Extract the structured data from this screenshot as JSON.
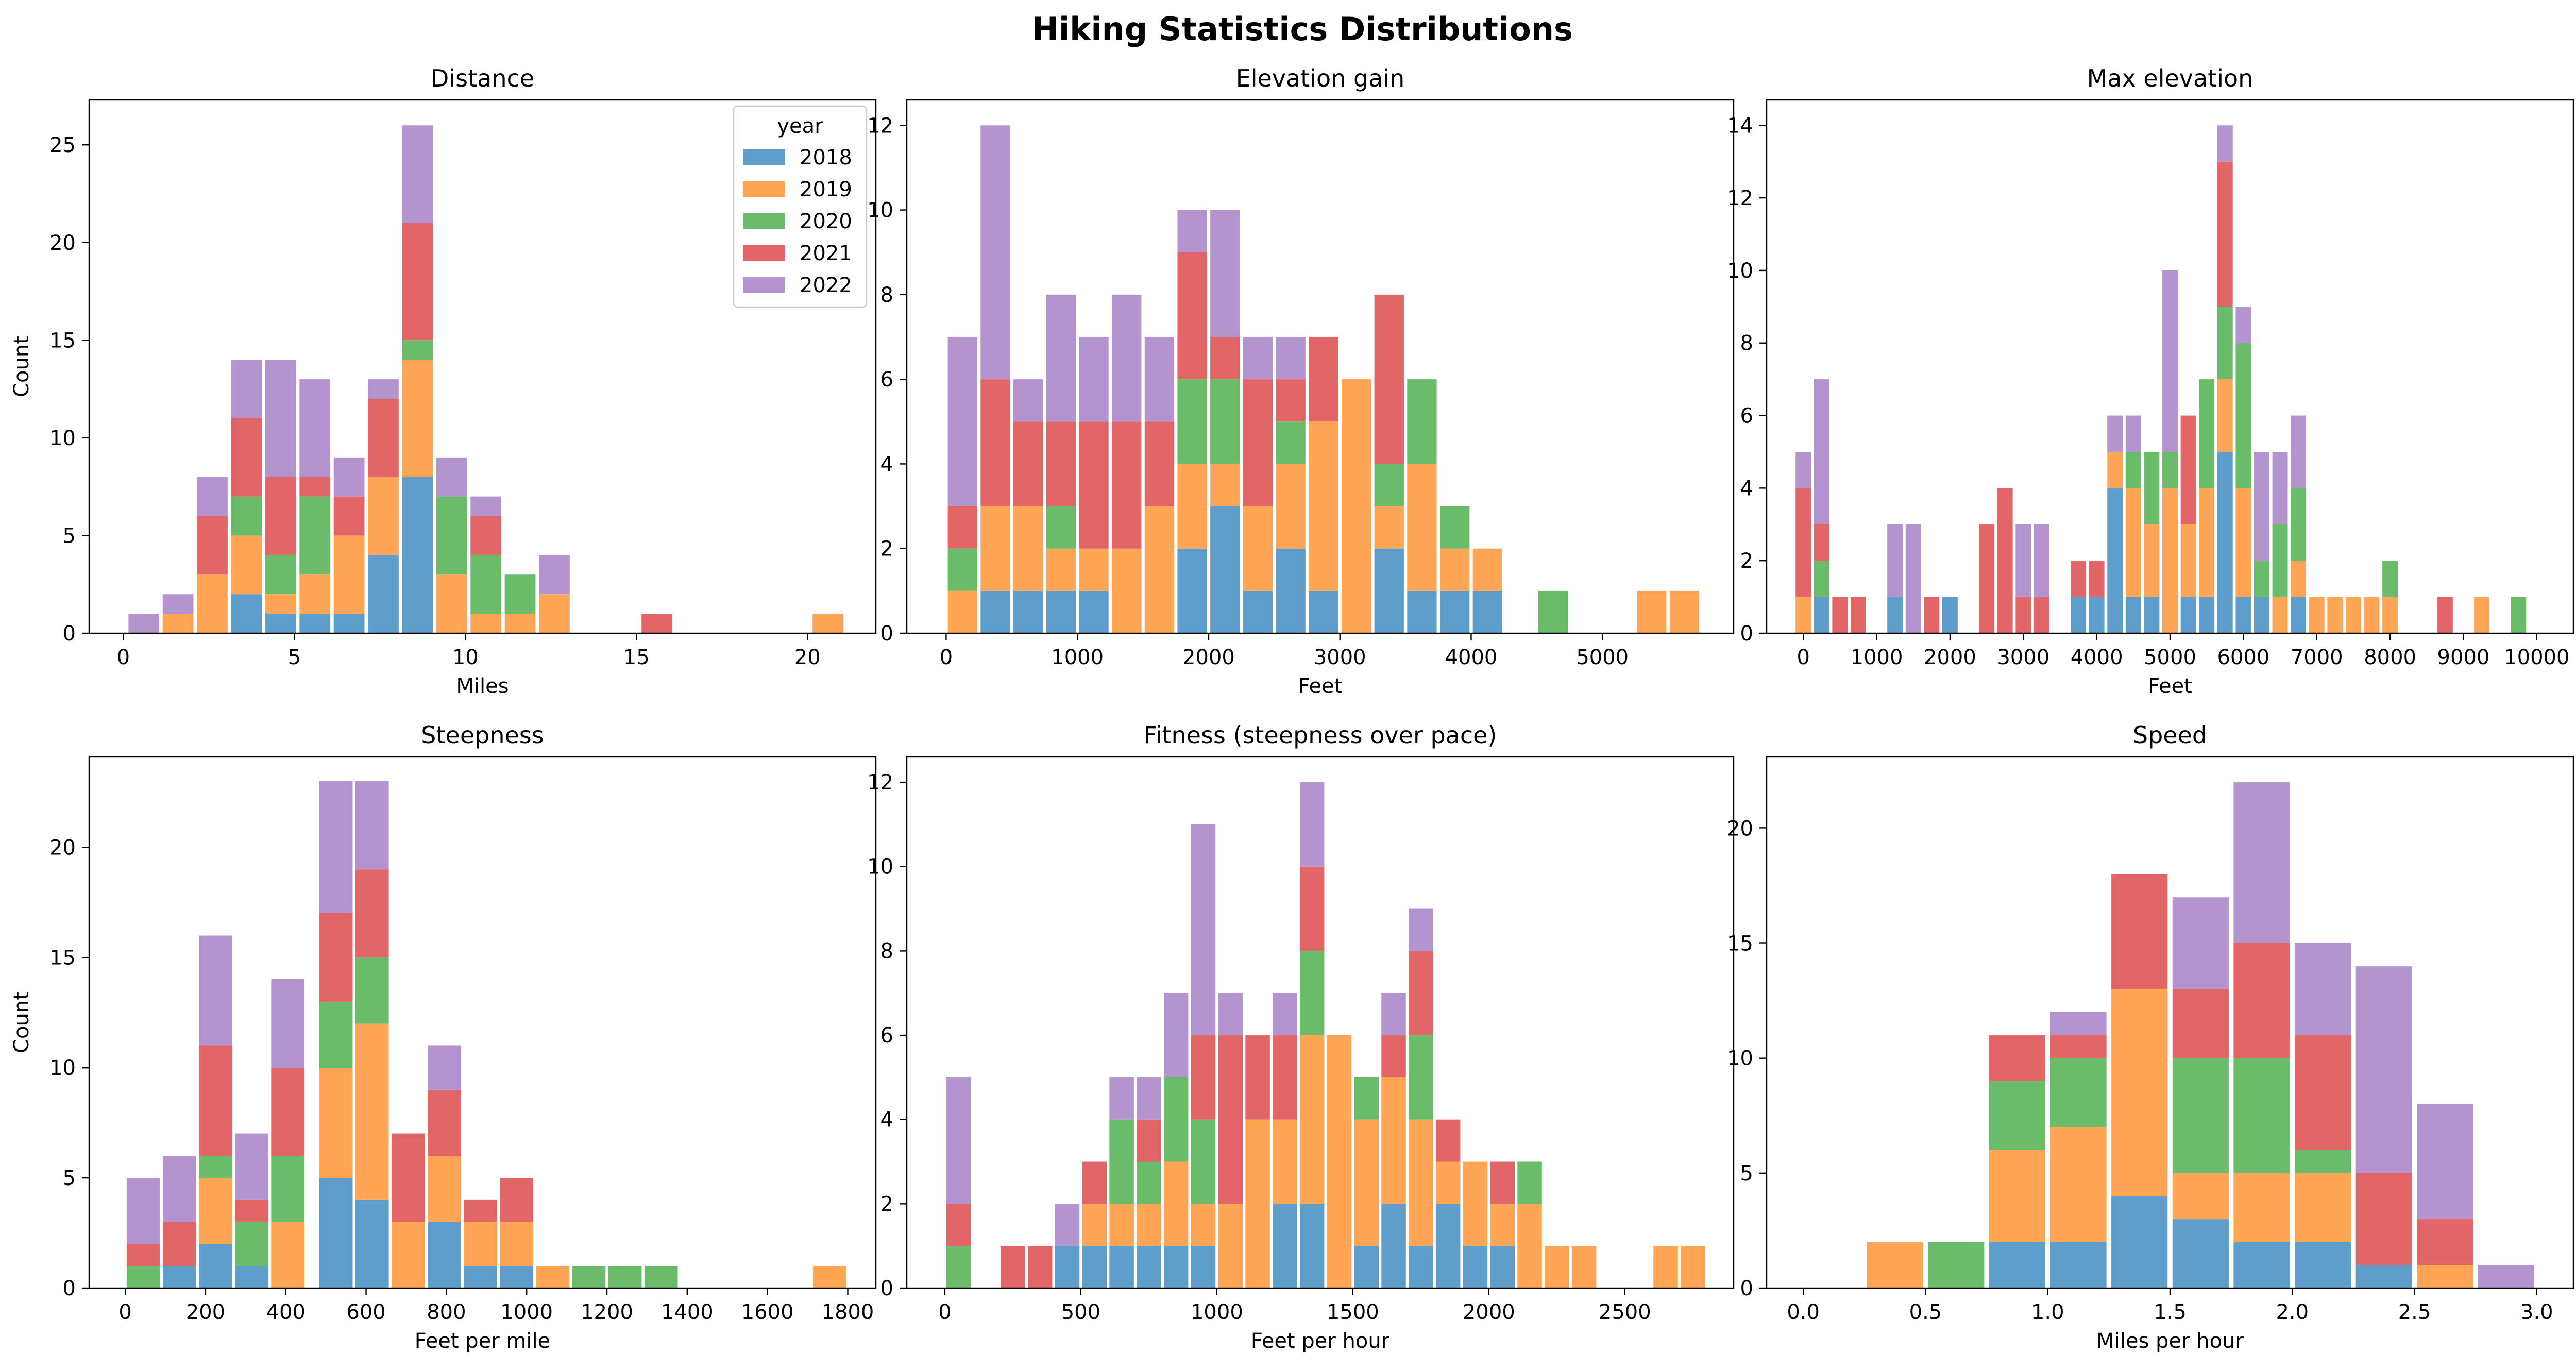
{
  "title": "Hiking Statistics Distributions",
  "legend": {
    "title": "year",
    "placement": "upper-right of first panel",
    "entries": [
      "2018",
      "2019",
      "2020",
      "2021",
      "2022"
    ]
  },
  "colors": {
    "2018": "#5f9ecb",
    "2019": "#ffa555",
    "2020": "#6abb6a",
    "2021": "#e26568",
    "2022": "#b394cf"
  },
  "chart_data": [
    {
      "type": "bar",
      "stacked": true,
      "title": "Distance",
      "xlabel": "Miles",
      "ylabel": "Count",
      "xlim": [
        -1,
        22
      ],
      "ylim": [
        0,
        27.3
      ],
      "xticks": [
        0,
        5,
        10,
        15,
        20
      ],
      "yticks": [
        0,
        5,
        10,
        15,
        20,
        25
      ],
      "bin_width": 0.9,
      "bins": [
        0.6,
        1.6,
        2.6,
        3.6,
        4.6,
        5.6,
        6.6,
        7.6,
        8.6,
        9.6,
        10.6,
        11.6,
        12.6,
        15.6,
        20.6
      ],
      "series": [
        {
          "name": "2018",
          "values": [
            0,
            0,
            0,
            2,
            1,
            1,
            1,
            4,
            8,
            0,
            0,
            0,
            0,
            0,
            0
          ]
        },
        {
          "name": "2019",
          "values": [
            0,
            1,
            3,
            3,
            1,
            2,
            4,
            4,
            6,
            3,
            1,
            1,
            2,
            0,
            1
          ]
        },
        {
          "name": "2020",
          "values": [
            0,
            0,
            0,
            2,
            2,
            4,
            0,
            0,
            1,
            4,
            3,
            2,
            0,
            0,
            0
          ]
        },
        {
          "name": "2021",
          "values": [
            0,
            0,
            3,
            4,
            4,
            1,
            2,
            4,
            6,
            0,
            2,
            0,
            0,
            1,
            0
          ]
        },
        {
          "name": "2022",
          "values": [
            1,
            1,
            2,
            3,
            6,
            5,
            2,
            1,
            5,
            2,
            1,
            0,
            2,
            0,
            0
          ]
        }
      ]
    },
    {
      "type": "bar",
      "stacked": true,
      "title": "Elevation gain",
      "xlabel": "Feet",
      "ylabel": "",
      "xlim": [
        -300,
        6000
      ],
      "ylim": [
        0,
        12.6
      ],
      "xticks": [
        0,
        1000,
        2000,
        3000,
        4000,
        5000
      ],
      "yticks": [
        0,
        2,
        4,
        6,
        8,
        10,
        12
      ],
      "bin_width": 225,
      "bins": [
        125,
        375,
        625,
        875,
        1125,
        1375,
        1625,
        1875,
        2125,
        2375,
        2625,
        2875,
        3125,
        3375,
        3625,
        3875,
        4125,
        4625,
        5375,
        5625
      ],
      "series": [
        {
          "name": "2018",
          "values": [
            0,
            1,
            1,
            1,
            1,
            0,
            0,
            2,
            3,
            1,
            2,
            1,
            0,
            2,
            1,
            1,
            1,
            0,
            0,
            0
          ]
        },
        {
          "name": "2019",
          "values": [
            1,
            2,
            2,
            1,
            1,
            2,
            3,
            2,
            1,
            2,
            2,
            4,
            6,
            1,
            3,
            1,
            1,
            0,
            1,
            1
          ]
        },
        {
          "name": "2020",
          "values": [
            1,
            0,
            0,
            1,
            0,
            0,
            0,
            2,
            2,
            0,
            1,
            0,
            0,
            1,
            2,
            1,
            0,
            1,
            0,
            0
          ]
        },
        {
          "name": "2021",
          "values": [
            1,
            3,
            2,
            2,
            3,
            3,
            2,
            3,
            1,
            3,
            1,
            2,
            0,
            4,
            0,
            0,
            0,
            0,
            0,
            0
          ]
        },
        {
          "name": "2022",
          "values": [
            4,
            6,
            1,
            3,
            2,
            3,
            2,
            1,
            3,
            1,
            1,
            0,
            0,
            0,
            0,
            0,
            0,
            0,
            0,
            0
          ]
        }
      ]
    },
    {
      "type": "bar",
      "stacked": true,
      "title": "Max elevation",
      "xlabel": "Feet",
      "ylabel": "",
      "xlim": [
        -500,
        10500
      ],
      "ylim": [
        0,
        14.7
      ],
      "xticks": [
        0,
        1000,
        2000,
        3000,
        4000,
        5000,
        6000,
        7000,
        8000,
        9000,
        10000
      ],
      "yticks": [
        0,
        2,
        4,
        6,
        8,
        10,
        12,
        14
      ],
      "bin_width": 210,
      "bins": [
        0,
        250,
        500,
        750,
        1250,
        1500,
        1750,
        2000,
        2500,
        2750,
        3000,
        3250,
        3750,
        4000,
        4250,
        4500,
        4750,
        5000,
        5250,
        5500,
        5750,
        6000,
        6250,
        6500,
        6750,
        7000,
        7250,
        7500,
        7750,
        8000,
        8750,
        9250,
        9750
      ],
      "series": [
        {
          "name": "2018",
          "values": [
            0,
            1,
            0,
            0,
            1,
            0,
            0,
            1,
            0,
            0,
            0,
            0,
            1,
            1,
            4,
            1,
            1,
            0,
            1,
            1,
            5,
            1,
            1,
            0,
            1,
            0,
            0,
            0,
            0,
            0,
            0,
            0,
            0
          ]
        },
        {
          "name": "2019",
          "values": [
            1,
            0,
            0,
            0,
            0,
            0,
            0,
            0,
            0,
            0,
            0,
            0,
            0,
            0,
            1,
            3,
            2,
            4,
            2,
            3,
            2,
            3,
            0,
            1,
            1,
            1,
            1,
            1,
            1,
            1,
            0,
            1,
            0
          ]
        },
        {
          "name": "2020",
          "values": [
            0,
            1,
            0,
            0,
            0,
            0,
            0,
            0,
            0,
            0,
            0,
            0,
            0,
            0,
            0,
            1,
            2,
            1,
            0,
            3,
            2,
            4,
            1,
            2,
            2,
            0,
            0,
            0,
            0,
            1,
            0,
            0,
            1
          ]
        },
        {
          "name": "2021",
          "values": [
            3,
            1,
            1,
            1,
            0,
            0,
            1,
            0,
            3,
            4,
            1,
            1,
            1,
            1,
            0,
            0,
            0,
            0,
            3,
            0,
            4,
            0,
            0,
            0,
            0,
            0,
            0,
            0,
            0,
            0,
            1,
            0,
            0
          ]
        },
        {
          "name": "2022",
          "values": [
            1,
            4,
            0,
            0,
            2,
            3,
            0,
            0,
            0,
            0,
            2,
            2,
            0,
            0,
            1,
            1,
            0,
            5,
            0,
            0,
            1,
            1,
            3,
            2,
            2,
            0,
            0,
            0,
            0,
            0,
            0,
            0,
            0
          ]
        }
      ]
    },
    {
      "type": "bar",
      "stacked": true,
      "title": "Steepness",
      "xlabel": "Feet per mile",
      "ylabel": "Count",
      "xlim": [
        -90,
        1870
      ],
      "ylim": [
        0,
        24.1
      ],
      "xticks": [
        0,
        200,
        400,
        600,
        800,
        1000,
        1200,
        1400,
        1600,
        1800
      ],
      "yticks": [
        0,
        5,
        10,
        15,
        20
      ],
      "bin_width": 83,
      "bins": [
        45,
        135,
        225,
        315,
        405,
        525,
        615,
        705,
        795,
        885,
        975,
        1065,
        1155,
        1245,
        1335,
        1755
      ],
      "series": [
        {
          "name": "2018",
          "values": [
            0,
            1,
            2,
            1,
            0,
            5,
            4,
            0,
            3,
            1,
            1,
            0,
            0,
            0,
            0,
            0
          ]
        },
        {
          "name": "2019",
          "values": [
            0,
            0,
            3,
            0,
            3,
            5,
            8,
            3,
            3,
            2,
            2,
            1,
            0,
            0,
            0,
            1
          ]
        },
        {
          "name": "2020",
          "values": [
            1,
            0,
            1,
            2,
            3,
            3,
            3,
            0,
            0,
            0,
            0,
            0,
            1,
            1,
            1,
            0
          ]
        },
        {
          "name": "2021",
          "values": [
            1,
            2,
            5,
            1,
            4,
            4,
            4,
            4,
            3,
            1,
            2,
            0,
            0,
            0,
            0,
            0
          ]
        },
        {
          "name": "2022",
          "values": [
            3,
            3,
            5,
            3,
            4,
            6,
            4,
            0,
            2,
            0,
            0,
            0,
            0,
            0,
            0,
            0
          ]
        }
      ]
    },
    {
      "type": "bar",
      "stacked": true,
      "title": "Fitness (steepness over pace)",
      "xlabel": "Feet per hour",
      "ylabel": "",
      "xlim": [
        -140,
        2900
      ],
      "ylim": [
        0,
        12.6
      ],
      "xticks": [
        0,
        500,
        1000,
        1500,
        2000,
        2500
      ],
      "yticks": [
        0,
        2,
        4,
        6,
        8,
        10,
        12
      ],
      "bin_width": 90,
      "bins": [
        50,
        250,
        350,
        450,
        550,
        650,
        750,
        850,
        950,
        1050,
        1150,
        1250,
        1350,
        1450,
        1550,
        1650,
        1750,
        1850,
        1950,
        2050,
        2150,
        2250,
        2350,
        2650,
        2750
      ],
      "series": [
        {
          "name": "2018",
          "values": [
            0,
            0,
            0,
            1,
            1,
            1,
            1,
            1,
            1,
            0,
            0,
            2,
            2,
            0,
            1,
            2,
            1,
            2,
            1,
            1,
            0,
            0,
            0,
            0,
            0
          ]
        },
        {
          "name": "2019",
          "values": [
            0,
            0,
            0,
            0,
            1,
            1,
            1,
            2,
            1,
            2,
            4,
            2,
            4,
            6,
            3,
            3,
            3,
            1,
            2,
            1,
            2,
            1,
            1,
            1,
            1
          ]
        },
        {
          "name": "2020",
          "values": [
            1,
            0,
            0,
            0,
            0,
            2,
            1,
            2,
            2,
            0,
            0,
            0,
            2,
            0,
            1,
            0,
            2,
            0,
            0,
            0,
            1,
            0,
            0,
            0,
            0
          ]
        },
        {
          "name": "2021",
          "values": [
            1,
            1,
            1,
            0,
            1,
            0,
            1,
            0,
            2,
            4,
            2,
            2,
            2,
            0,
            0,
            1,
            2,
            1,
            0,
            1,
            0,
            0,
            0,
            0,
            0
          ]
        },
        {
          "name": "2022",
          "values": [
            3,
            0,
            0,
            1,
            0,
            1,
            1,
            2,
            5,
            1,
            0,
            1,
            2,
            0,
            0,
            1,
            1,
            0,
            0,
            0,
            0,
            0,
            0,
            0,
            0
          ]
        }
      ]
    },
    {
      "type": "bar",
      "stacked": true,
      "title": "Speed",
      "xlabel": "Miles per hour",
      "ylabel": "",
      "xlim": [
        -0.15,
        3.15
      ],
      "ylim": [
        0,
        23.1
      ],
      "xticks": [
        0.0,
        0.5,
        1.0,
        1.5,
        2.0,
        2.5,
        3.0
      ],
      "yticks": [
        0,
        5,
        10,
        15,
        20
      ],
      "bin_width": 0.23,
      "bins": [
        0.375,
        0.625,
        0.875,
        1.125,
        1.375,
        1.625,
        1.875,
        2.125,
        2.375,
        2.625,
        2.875
      ],
      "series": [
        {
          "name": "2018",
          "values": [
            0,
            0,
            2,
            2,
            4,
            3,
            2,
            2,
            1,
            0,
            0
          ]
        },
        {
          "name": "2019",
          "values": [
            2,
            0,
            4,
            5,
            9,
            2,
            3,
            3,
            0,
            1,
            0
          ]
        },
        {
          "name": "2020",
          "values": [
            0,
            2,
            3,
            3,
            0,
            5,
            5,
            1,
            0,
            0,
            0
          ]
        },
        {
          "name": "2021",
          "values": [
            0,
            0,
            2,
            1,
            5,
            3,
            5,
            5,
            4,
            2,
            0
          ]
        },
        {
          "name": "2022",
          "values": [
            0,
            0,
            0,
            1,
            0,
            4,
            7,
            4,
            9,
            5,
            1
          ]
        }
      ]
    }
  ]
}
